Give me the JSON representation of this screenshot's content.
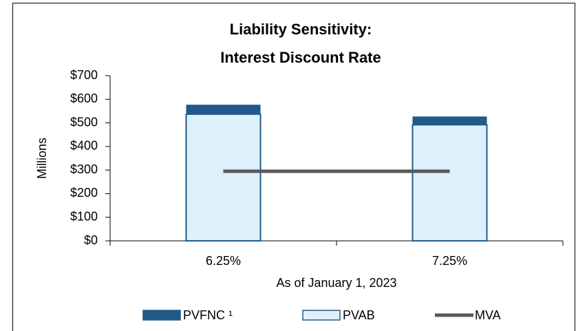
{
  "chart_data": {
    "type": "bar",
    "title": [
      "Liability Sensitivity:",
      "Interest Discount Rate"
    ],
    "y_label": "Millions",
    "x_label": "As of January  1, 2023",
    "categories": [
      "6.25%",
      "7.25%"
    ],
    "series": [
      {
        "name": "PVFNC ¹",
        "type": "bar",
        "color": "#215a8a",
        "values": [
          40,
          35
        ]
      },
      {
        "name": "PVAB",
        "type": "bar",
        "color": "#ddf1fb",
        "values": [
          537,
          492
        ]
      },
      {
        "name": "MVA",
        "type": "line",
        "color": "#595959",
        "values": [
          295,
          295
        ]
      }
    ],
    "ylim": [
      0,
      700
    ],
    "yticks": [
      {
        "value": 0,
        "label": "$0"
      },
      {
        "value": 100,
        "label": "$100"
      },
      {
        "value": 200,
        "label": "$200"
      },
      {
        "value": 300,
        "label": "$300"
      },
      {
        "value": 400,
        "label": "$400"
      },
      {
        "value": 500,
        "label": "$500"
      },
      {
        "value": 600,
        "label": "$600"
      },
      {
        "value": 700,
        "label": "$700"
      }
    ],
    "legend": "bottom"
  }
}
